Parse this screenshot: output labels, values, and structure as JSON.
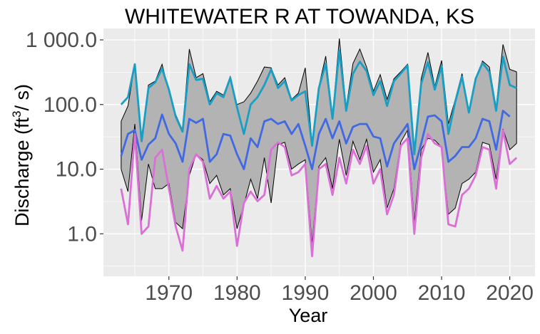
{
  "chart_data": {
    "type": "area",
    "title": "WHITEWATER R AT TOWANDA, KS",
    "xlabel": "Year",
    "ylabel": {
      "prefix": "Discharge (ft",
      "superscript": "3",
      "suffix": "/ s)"
    },
    "y_scale": "log10",
    "ylim": [
      0.22,
      1500
    ],
    "xlim": [
      1960.4,
      2023.7
    ],
    "x_ticks": [
      1970,
      1980,
      1990,
      2000,
      2010,
      2020
    ],
    "y_ticks": [
      1,
      10,
      100,
      1000
    ],
    "y_tick_labels": [
      "1.0",
      "10.0",
      "100.0",
      "1 000.0"
    ],
    "grid": true,
    "legend": "none",
    "colors": {
      "panel": "#ebebeb",
      "grid": "#ffffff",
      "band": "#b3b3b3",
      "band_edge": "#000000",
      "max_series": "#1a9ec4",
      "mean_series": "#4169e1",
      "min_series": "#da70d6"
    },
    "x": [
      1963,
      1964,
      1965,
      1966,
      1967,
      1968,
      1969,
      1970,
      1971,
      1972,
      1973,
      1974,
      1975,
      1976,
      1977,
      1978,
      1979,
      1980,
      1981,
      1982,
      1983,
      1984,
      1985,
      1986,
      1987,
      1988,
      1989,
      1990,
      1991,
      1992,
      1993,
      1994,
      1995,
      1996,
      1997,
      1998,
      1999,
      2000,
      2001,
      2002,
      2003,
      2004,
      2005,
      2006,
      2007,
      2008,
      2009,
      2010,
      2011,
      2012,
      2013,
      2014,
      2015,
      2016,
      2017,
      2018,
      2019,
      2020,
      2021
    ],
    "band_upper": [
      55,
      95,
      420,
      30,
      200,
      230,
      420,
      160,
      70,
      40,
      720,
      260,
      300,
      110,
      160,
      140,
      270,
      100,
      110,
      150,
      230,
      380,
      370,
      200,
      260,
      120,
      150,
      370,
      25,
      190,
      560,
      65,
      1050,
      90,
      430,
      720,
      380,
      160,
      290,
      120,
      250,
      320,
      420,
      20,
      250,
      640,
      190,
      480,
      50,
      120,
      300,
      80,
      260,
      470,
      380,
      90,
      850,
      350,
      320
    ],
    "band_lower": [
      10,
      4.5,
      50,
      1.6,
      12,
      5,
      5,
      6,
      1.5,
      1.2,
      8,
      17,
      14,
      6,
      8,
      4,
      5,
      1.2,
      2.8,
      7,
      3.5,
      15,
      3,
      24,
      26,
      10,
      12,
      14,
      0.7,
      11,
      15,
      5,
      29,
      8,
      27,
      14,
      29,
      9,
      14,
      2.5,
      5,
      26,
      40,
      1.5,
      20,
      30,
      28,
      22,
      2,
      2.5,
      6,
      7,
      9,
      26,
      24,
      7,
      42,
      20,
      25
    ],
    "series": [
      {
        "values": [
          100,
          130,
          420,
          27,
          180,
          220,
          360,
          170,
          65,
          38,
          420,
          240,
          250,
          100,
          150,
          130,
          260,
          90,
          35,
          100,
          130,
          200,
          350,
          180,
          230,
          115,
          140,
          160,
          23,
          180,
          430,
          60,
          690,
          80,
          300,
          460,
          330,
          140,
          230,
          95,
          230,
          300,
          400,
          17,
          210,
          450,
          170,
          390,
          35,
          110,
          270,
          75,
          250,
          440,
          320,
          80,
          550,
          200,
          180
        ]
      },
      {
        "values": [
          16,
          35,
          40,
          14,
          24,
          30,
          70,
          35,
          25,
          13,
          60,
          52,
          60,
          13,
          17,
          35,
          33,
          17,
          10,
          30,
          22,
          55,
          60,
          50,
          55,
          35,
          50,
          23,
          10,
          35,
          60,
          30,
          55,
          25,
          45,
          50,
          50,
          32,
          30,
          11,
          25,
          35,
          50,
          10,
          25,
          65,
          68,
          55,
          13,
          16,
          22,
          22,
          30,
          60,
          55,
          20,
          80,
          65,
          null
        ],
        "last_index_note": ""
      },
      {
        "values": [
          5,
          1.4,
          35,
          1,
          1.3,
          15,
          20,
          5,
          1.3,
          0.55,
          10,
          17,
          13,
          3.5,
          5.5,
          3.5,
          4.5,
          0.65,
          3,
          4.5,
          3.2,
          4,
          20,
          26,
          22,
          8,
          9,
          12,
          0.45,
          10,
          12,
          4,
          15,
          6,
          20,
          12,
          23,
          6,
          10,
          2,
          4,
          23,
          30,
          1,
          15,
          35,
          25,
          22,
          1.4,
          1.3,
          4,
          5,
          8,
          22,
          20,
          5,
          40,
          12,
          15
        ]
      }
    ]
  }
}
